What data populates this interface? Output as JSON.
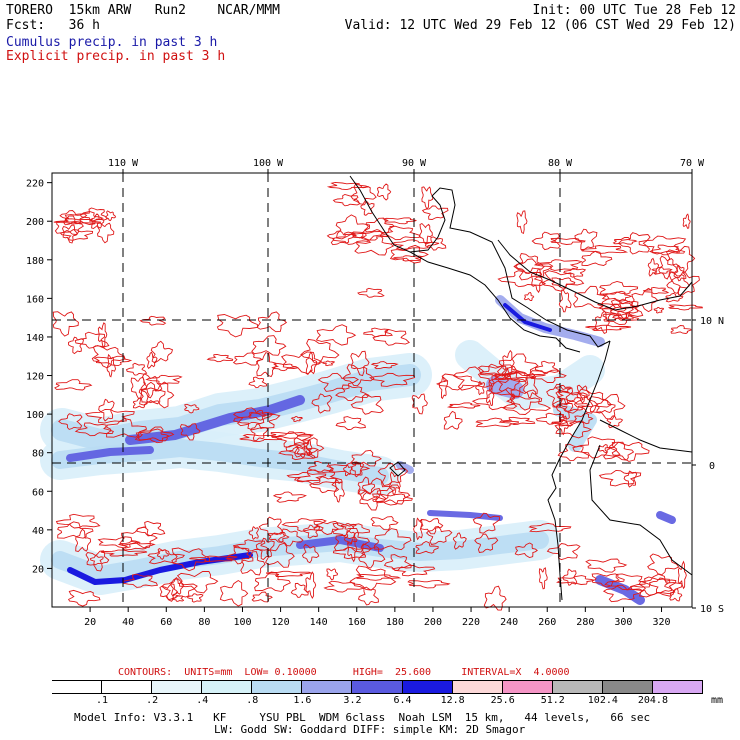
{
  "header": {
    "model": "TORERO  15km ARW   Run2    NCAR/MMM",
    "init": "Init: 00 UTC Tue 28 Feb 12",
    "forecast": "Fcst:   36 h",
    "valid": "Valid: 12 UTC Wed 29 Feb 12 (06 CST Wed 29 Feb 12)",
    "legend_cumulus": "Cumulus precip. in past 3 h",
    "legend_explicit": "Explicit precip. in past 3 h"
  },
  "map": {
    "top_lon_labels": [
      "110 W",
      "100 W",
      "90 W",
      "80 W",
      "70 W"
    ],
    "right_lat_labels": [
      "10 N",
      "0",
      "10 S"
    ],
    "y_ticks": [
      "220",
      "200",
      "180",
      "160",
      "140",
      "120",
      "100",
      "80",
      "60",
      "40",
      "20"
    ],
    "x_ticks": [
      "20",
      "40",
      "60",
      "80",
      "100",
      "120",
      "140",
      "160",
      "180",
      "200",
      "220",
      "240",
      "260",
      "280",
      "300",
      "320"
    ],
    "x_range": [
      0,
      336
    ],
    "y_range": [
      0,
      225
    ],
    "grid_lon_x": [
      40,
      115,
      188,
      262
    ],
    "grid_lat_y": [
      150,
      78
    ],
    "colors": {
      "cumulus": "#3a3ad8",
      "explicit": "#e01818",
      "coast": "#000000"
    }
  },
  "contour_info": {
    "prefix": "CONTOURS:  UNITS=mm  LOW= 0.10000",
    "high": "HIGH=  25.600",
    "interval": "INTERVAL=X  4.0000"
  },
  "colorbar": {
    "labels": [
      ".1",
      ".2",
      ".4",
      ".8",
      "1.6",
      "3.2",
      "6.4",
      "12.8",
      "25.6",
      "51.2",
      "102.4",
      "204.8"
    ],
    "colors": [
      "#ffffff",
      "#ffffff",
      "#e8f6fb",
      "#d6f2f8",
      "#b9dcf3",
      "#9aa4ec",
      "#5a5ae0",
      "#1a1ae0",
      "#fcd8d8",
      "#f595c6",
      "#b8b8b8",
      "#898989",
      "#d8a8f3"
    ],
    "unit": "mm"
  },
  "model_info": {
    "line1": "Model Info: V3.3.1   KF     YSU PBL  WDM 6class  Noah LSM  15 km,   44 levels,   66 sec",
    "line2": "LW: Godd SW: Goddard DIFF: simple KM: 2D Smagor"
  }
}
